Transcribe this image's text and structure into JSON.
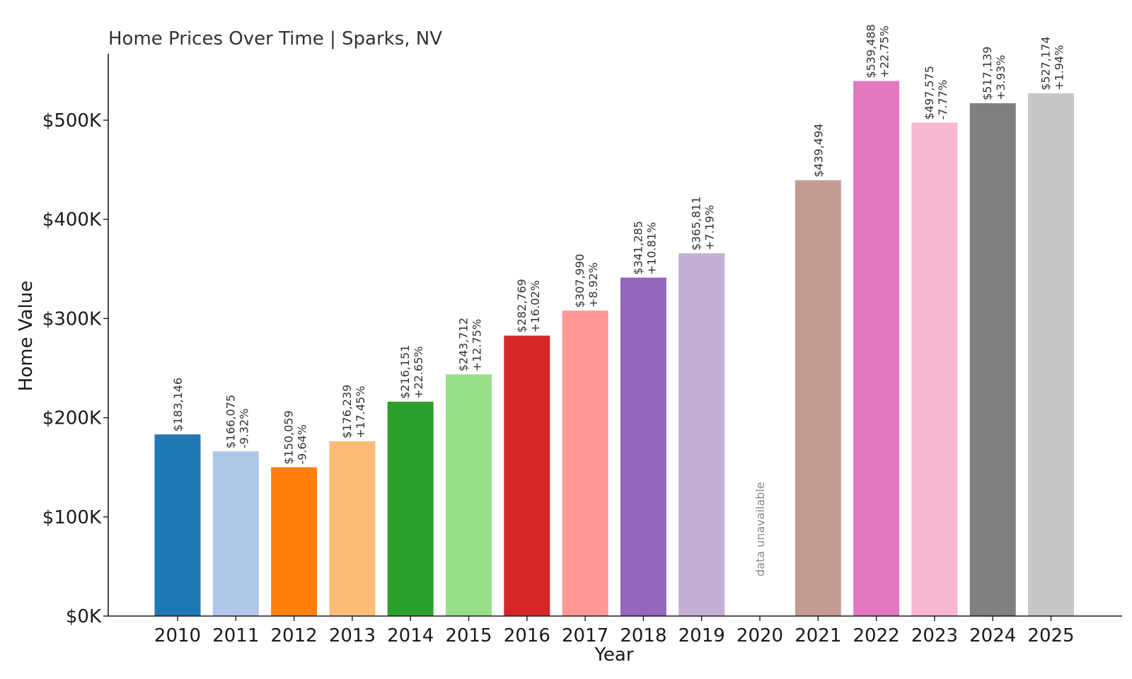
{
  "chart_data": {
    "type": "bar",
    "title": "Home Prices Over Time | Sparks, NV",
    "xlabel": "Year",
    "ylabel": "Home Value",
    "ylim": [
      0,
      567000
    ],
    "yticks": [
      0,
      100000,
      200000,
      300000,
      400000,
      500000
    ],
    "ytick_labels": [
      "$0K",
      "$100K",
      "$200K",
      "$300K",
      "$400K",
      "$500K"
    ],
    "grid": false,
    "categories": [
      "2010",
      "2011",
      "2012",
      "2013",
      "2014",
      "2015",
      "2016",
      "2017",
      "2018",
      "2019",
      "2020",
      "2021",
      "2022",
      "2023",
      "2024",
      "2025"
    ],
    "values": [
      183146,
      166075,
      150059,
      176239,
      216151,
      243712,
      282769,
      307990,
      341285,
      365811,
      null,
      439494,
      539488,
      497575,
      517139,
      527174
    ],
    "value_labels": [
      "$183,146",
      "$166,075",
      "$150,059",
      "$176,239",
      "$216,151",
      "$243,712",
      "$282,769",
      "$307,990",
      "$341,285",
      "$365,811",
      "",
      "$439,494",
      "$539,488",
      "$497,575",
      "$517,139",
      "$527,174"
    ],
    "change_labels": [
      "",
      "-9.32%",
      "-9.64%",
      "+17.45%",
      "+22.65%",
      "+12.75%",
      "+16.02%",
      "+8.92%",
      "+10.81%",
      "+7.19%",
      "",
      "",
      "+22.75%",
      "-7.77%",
      "+3.93%",
      "+1.94%"
    ],
    "missing_label": "data unavailable",
    "colors": [
      "#1f77b4",
      "#aec7e8",
      "#ff7f0e",
      "#ffbb78",
      "#2ca02c",
      "#98df8a",
      "#d62728",
      "#ff9896",
      "#9467bd",
      "#c5b0d5",
      "#8c564b",
      "#c49c94",
      "#e377c2",
      "#f7b6d2",
      "#7f7f7f",
      "#c7c7c7"
    ]
  }
}
